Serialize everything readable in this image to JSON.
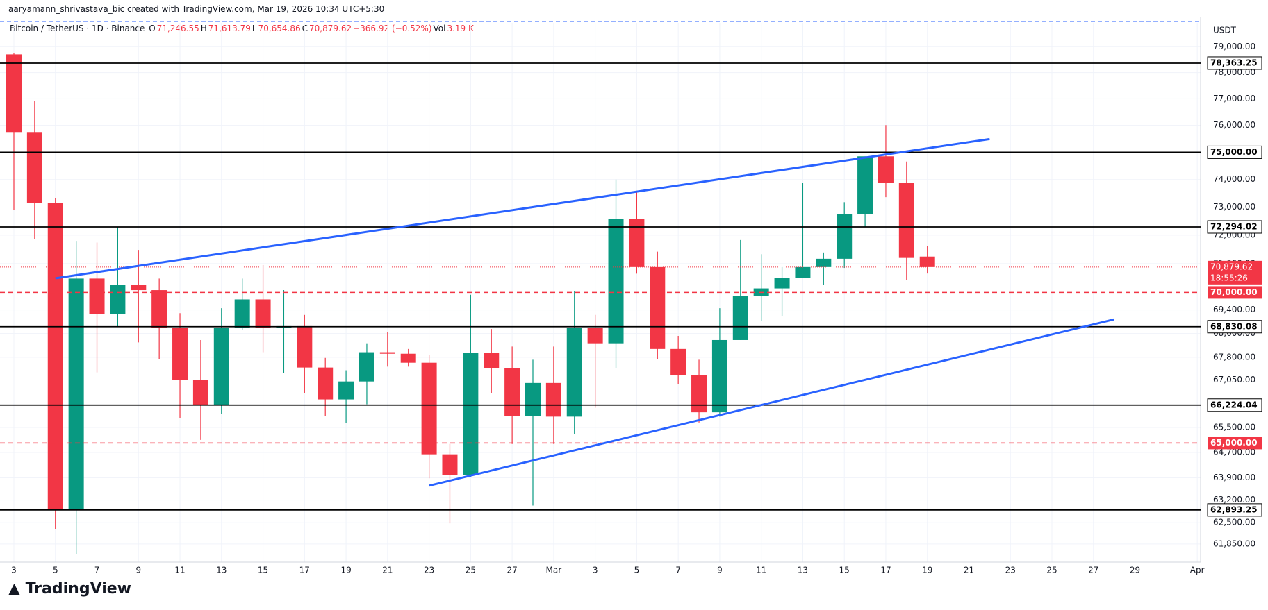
{
  "top_text": "aaryamann_shrivastava_bic created with TradingView.com, Mar 19, 2026 10:34 UTC+5:30",
  "header": {
    "symbol": "Bitcoin / TetherUS · 1D · Binance",
    "ohlc": [
      {
        "label": "O",
        "value": "71,246.55"
      },
      {
        "label": "H",
        "value": "71,613.79"
      },
      {
        "label": "L",
        "value": "70,654.86"
      },
      {
        "label": "C",
        "value": "70,879.62"
      }
    ],
    "change": "−366.92 (−0.52%)",
    "vol_label": "Vol",
    "vol": "3.19 K"
  },
  "watermark": "TradingView",
  "chart_data": {
    "type": "candlestick",
    "currency": "USDT",
    "log_scale": true,
    "grid": true,
    "up_color": "#089981",
    "down_color": "#f23645",
    "categories": [
      "3",
      null,
      "5",
      null,
      "7",
      null,
      "9",
      null,
      "11",
      null,
      "13",
      null,
      "15",
      null,
      "17",
      null,
      "19",
      null,
      "21",
      null,
      "23",
      null,
      "25",
      null,
      "27",
      null,
      "Mar",
      null,
      "3",
      null,
      "5",
      null,
      "7",
      null,
      "9",
      null,
      "11",
      null,
      "13",
      null,
      "15",
      null,
      "17",
      null,
      "19",
      null,
      "21",
      null,
      "23",
      null,
      "25",
      null,
      "27",
      null,
      "29",
      null,
      null,
      "Apr"
    ],
    "open": [
      78700,
      75750,
      73150,
      62900,
      70480,
      69260,
      70270,
      70080,
      68800,
      67050,
      66220,
      68800,
      69760,
      68800,
      68850,
      67460,
      66410,
      67000,
      67970,
      67920,
      67620,
      64640,
      63980,
      67950,
      67430,
      65880,
      66950,
      65850,
      68800,
      68270,
      72580,
      70880,
      68080,
      67210,
      65990,
      68380,
      69890,
      70140,
      70510,
      70880,
      71170,
      72740,
      74850,
      73870,
      71246.55,
      null,
      null,
      null,
      null,
      null,
      null,
      null,
      null,
      null,
      null,
      null,
      null,
      null
    ],
    "high": [
      78750,
      76910,
      73330,
      71800,
      71740,
      72300,
      71480,
      70480,
      69290,
      68380,
      69460,
      70480,
      70950,
      70080,
      69230,
      67780,
      67370,
      68270,
      68640,
      68080,
      67890,
      64970,
      69920,
      68750,
      68160,
      67720,
      68160,
      70050,
      69230,
      74000,
      73540,
      71420,
      68520,
      67720,
      69460,
      71830,
      71330,
      70880,
      73870,
      71390,
      73180,
      74850,
      76010,
      74660,
      71613.79,
      null,
      null,
      null,
      null,
      null,
      null,
      null,
      null,
      null,
      null,
      null,
      null,
      null
    ],
    "low": [
      72900,
      71850,
      62300,
      61550,
      67300,
      68830,
      68300,
      67750,
      65800,
      65100,
      65940,
      68720,
      67970,
      67270,
      66620,
      65880,
      65640,
      66250,
      67490,
      67490,
      63880,
      62480,
      63930,
      66620,
      64970,
      63030,
      64970,
      65290,
      66140,
      67430,
      70650,
      67750,
      66920,
      65660,
      65850,
      68380,
      69020,
      69200,
      70510,
      70250,
      70850,
      72290,
      73360,
      70430,
      70654.86,
      null,
      null,
      null,
      null,
      null,
      null,
      null,
      null,
      null,
      null,
      null,
      null,
      null
    ],
    "close": [
      75750,
      73150,
      62900,
      70480,
      69260,
      70270,
      70080,
      68800,
      67050,
      66220,
      68800,
      69760,
      68800,
      68850,
      67460,
      66410,
      67000,
      67970,
      67920,
      67620,
      64640,
      63980,
      67950,
      67430,
      65880,
      66950,
      65850,
      68800,
      68270,
      72580,
      70880,
      68080,
      67210,
      65990,
      68380,
      69890,
      70140,
      70510,
      70880,
      71170,
      72740,
      74850,
      73870,
      71200,
      70879.62,
      null,
      null,
      null,
      null,
      null,
      null,
      null,
      null,
      null,
      null,
      null,
      null,
      null
    ],
    "ylim": [
      61300,
      79930
    ],
    "yticks": [
      {
        "value": 79000,
        "label": "79,000.00"
      },
      {
        "value": 78000,
        "label": "78,000.00"
      },
      {
        "value": 77000,
        "label": "77,000.00"
      },
      {
        "value": 76000,
        "label": "76,000.00"
      },
      {
        "value": 75000,
        "label": "75,000.00"
      },
      {
        "value": 74000,
        "label": "74,000.00"
      },
      {
        "value": 73000,
        "label": "73,000.00"
      },
      {
        "value": 72000,
        "label": "72,000.00"
      },
      {
        "value": 71000,
        "label": "71,000.00"
      },
      {
        "value": 69400,
        "label": "69,400.00"
      },
      {
        "value": 68600,
        "label": "68,600.00"
      },
      {
        "value": 67800,
        "label": "67,800.00"
      },
      {
        "value": 67050,
        "label": "67,050.00"
      },
      {
        "value": 65500,
        "label": "65,500.00"
      },
      {
        "value": 64700,
        "label": "64,700.00"
      },
      {
        "value": 63900,
        "label": "63,900.00"
      },
      {
        "value": 63200,
        "label": "63,200.00"
      },
      {
        "value": 62500,
        "label": "62,500.00"
      },
      {
        "value": 61850,
        "label": "61,850.00"
      }
    ],
    "levels": [
      {
        "value": 78363.25,
        "label": "78,363.25",
        "style": "solid",
        "color": "#000000"
      },
      {
        "value": 75000,
        "label": "75,000.00",
        "style": "solid",
        "color": "#000000"
      },
      {
        "value": 72294.02,
        "label": "72,294.02",
        "style": "solid",
        "color": "#000000"
      },
      {
        "value": 70000,
        "label": "70,000.00",
        "style": "dashed",
        "color": "#f23645"
      },
      {
        "value": 68830.08,
        "label": "68,830.08",
        "style": "solid",
        "color": "#000000"
      },
      {
        "value": 66224.04,
        "label": "66,224.04",
        "style": "solid",
        "color": "#000000"
      },
      {
        "value": 65000,
        "label": "65,000.00",
        "style": "dashed",
        "color": "#f23645"
      },
      {
        "value": 62893.25,
        "label": "62,893.25",
        "style": "solid",
        "color": "#000000"
      }
    ],
    "last_price": {
      "value": 70879.62,
      "label": "70,879.62",
      "countdown": "18:55:26",
      "color": "#f23645"
    },
    "trendlines": [
      {
        "x": [
          2,
          47
        ],
        "y": [
          70490,
          75490
        ],
        "color": "#2962ff"
      },
      {
        "x": [
          20,
          53
        ],
        "y": [
          63650,
          69080
        ],
        "color": "#2962ff"
      }
    ]
  }
}
